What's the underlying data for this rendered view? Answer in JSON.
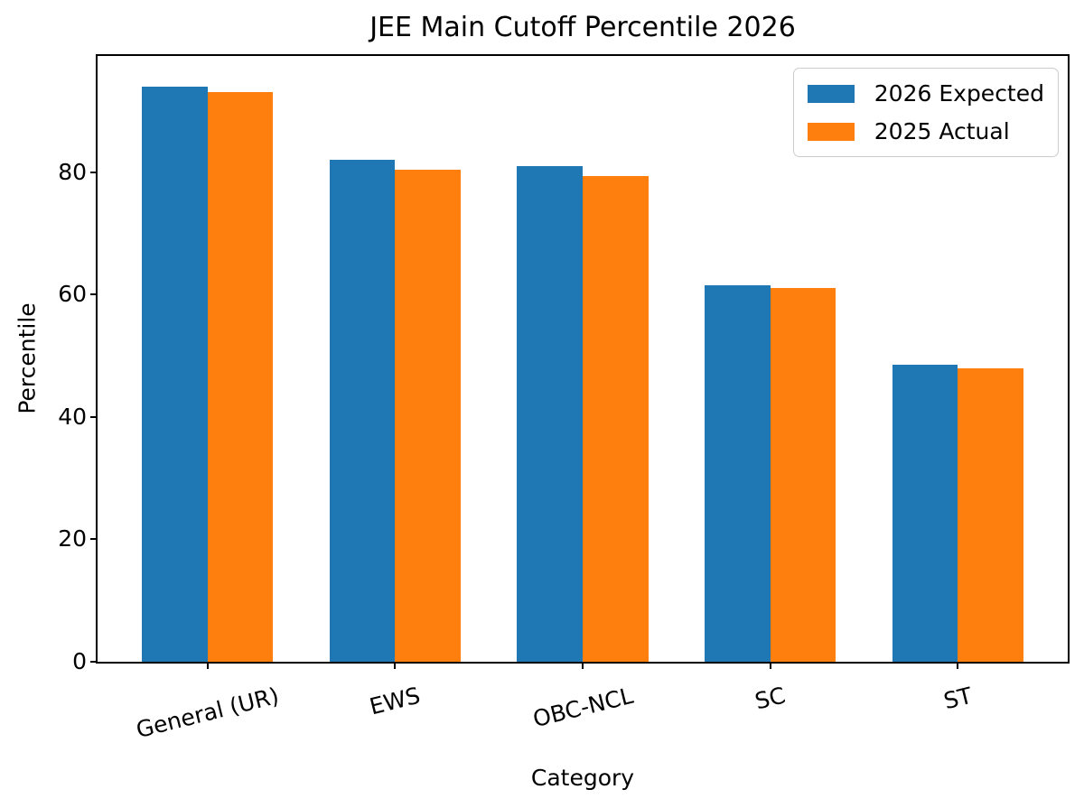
{
  "chart_data": {
    "type": "bar",
    "title": "JEE Main Cutoff Percentile 2026",
    "xlabel": "Category",
    "ylabel": "Percentile",
    "categories": [
      "General (UR)",
      "EWS",
      "OBC-NCL",
      "SC",
      "ST"
    ],
    "series": [
      {
        "name": "2026 Expected",
        "color": "#1f77b4",
        "values": [
          94,
          82,
          81,
          61.5,
          48.5
        ]
      },
      {
        "name": "2025 Actual",
        "color": "#ff7f0e",
        "values": [
          93.1,
          80.38,
          79.43,
          61.15,
          47.9
        ]
      }
    ],
    "yticks": [
      0,
      20,
      40,
      60,
      80
    ],
    "ylim": [
      0,
      99
    ],
    "bar_width_ratio": 0.35,
    "x_margin_fraction": 0.05,
    "x_tick_rotation_deg": 14,
    "legend_position": "upper right",
    "grid": false,
    "background_color": "#ffffff",
    "text_color": "#000000",
    "spine_color": "#000000"
  }
}
